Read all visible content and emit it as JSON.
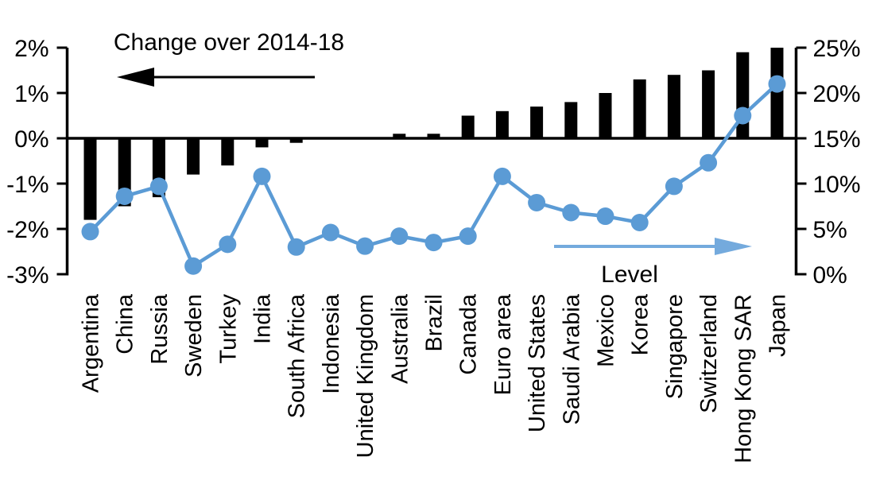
{
  "chart_data": {
    "type": "bar",
    "subtype": "dual-axis bar+line combo",
    "categories": [
      "Argentina",
      "China",
      "Russia",
      "Sweden",
      "Turkey",
      "India",
      "South Africa",
      "Indonesia",
      "United Kingdom",
      "Australia",
      "Brazil",
      "Canada",
      "Euro area",
      "United States",
      "Saudi Arabia",
      "Mexico",
      "Korea",
      "Singapore",
      "Switzerland",
      "Hong Kong SAR",
      "Japan"
    ],
    "series": [
      {
        "name": "Change over 2014-18",
        "type": "bar",
        "axis": "left",
        "color": "#000000",
        "values": [
          -1.8,
          -1.5,
          -1.3,
          -0.8,
          -0.6,
          -0.2,
          -0.1,
          0.0,
          0.0,
          0.1,
          0.1,
          0.5,
          0.6,
          0.7,
          0.8,
          1.0,
          1.3,
          1.4,
          1.5,
          1.9,
          2.0
        ]
      },
      {
        "name": "Level",
        "type": "line",
        "axis": "right",
        "color": "#5B9BD5",
        "values": [
          4.7,
          8.6,
          9.7,
          0.9,
          3.3,
          10.8,
          3.0,
          4.6,
          3.1,
          4.2,
          3.5,
          4.2,
          10.8,
          7.9,
          6.8,
          6.4,
          5.7,
          9.7,
          12.3,
          17.5,
          21.0
        ]
      }
    ],
    "left_axis": {
      "min": -3,
      "max": 2,
      "tick_values": [
        2,
        1,
        0,
        -1,
        -2,
        -3
      ],
      "tick_labels": [
        "2%",
        "1%",
        "0%",
        "-1%",
        "-2%",
        "-3%"
      ]
    },
    "right_axis": {
      "min": 0,
      "max": 25,
      "tick_values": [
        25,
        20,
        15,
        10,
        5,
        0
      ],
      "tick_labels": [
        "25%",
        "20%",
        "15%",
        "10%",
        "5%",
        "0%"
      ]
    },
    "annotations": {
      "bar_series_label": "Change over 2014-18",
      "line_series_label": "Level"
    },
    "colors": {
      "bar": "#000000",
      "line": "#5B9BD5",
      "arrow_blue": "#74AADD"
    },
    "grid": false,
    "legend_position": "in-plot annotations with direction arrows"
  }
}
